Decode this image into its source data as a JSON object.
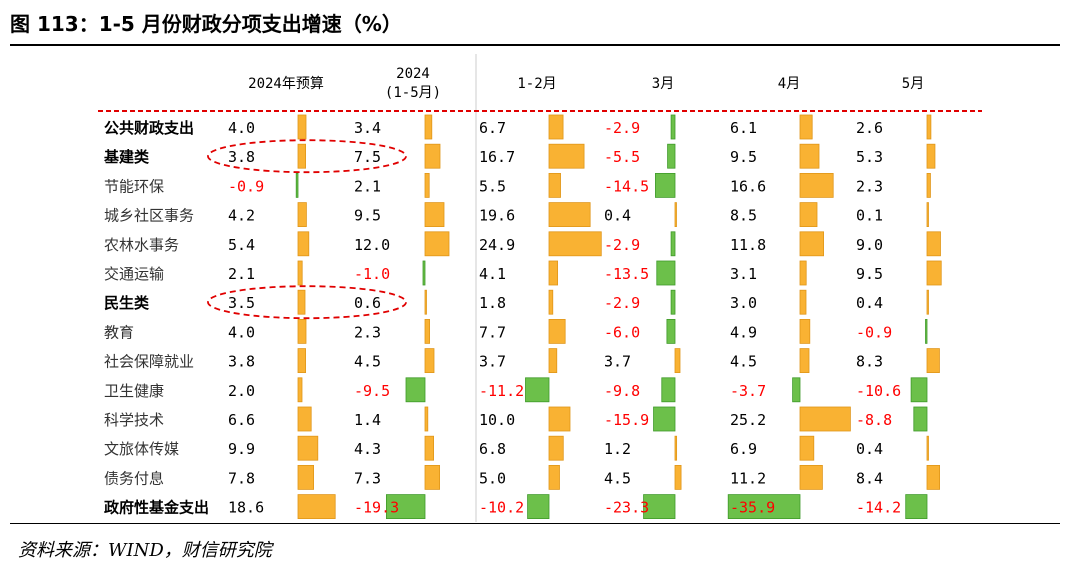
{
  "figure": {
    "title": "图 113：1-5 月份财政分项支出增速（%）",
    "source": "资料来源：WIND，财信研究院"
  },
  "colors": {
    "positive_bar": "#f9b233",
    "negative_bar": "#6cc04a",
    "negative_text": "#ff0000",
    "dashed_line": "#e00000",
    "oval": "#e00000"
  },
  "chart_data": {
    "type": "table",
    "columns": [
      "2024年预算",
      "2024\n(1-5月)",
      "1-2月",
      "3月",
      "4月",
      "5月"
    ],
    "rows": [
      {
        "name": "公共财政支出",
        "bold": true,
        "values": [
          4.0,
          3.4,
          6.7,
          -2.9,
          6.1,
          2.6
        ]
      },
      {
        "name": "基建类",
        "bold": true,
        "values": [
          3.8,
          7.5,
          16.7,
          -5.5,
          9.5,
          5.3
        ]
      },
      {
        "name": "节能环保",
        "bold": false,
        "values": [
          -0.9,
          2.1,
          5.5,
          -14.5,
          16.6,
          2.3
        ]
      },
      {
        "name": "城乡社区事务",
        "bold": false,
        "values": [
          4.2,
          9.5,
          19.6,
          0.4,
          8.5,
          0.1
        ]
      },
      {
        "name": "农林水事务",
        "bold": false,
        "values": [
          5.4,
          12.0,
          24.9,
          -2.9,
          11.8,
          9.0
        ]
      },
      {
        "name": "交通运输",
        "bold": false,
        "values": [
          2.1,
          -1.0,
          4.1,
          -13.5,
          3.1,
          9.5
        ]
      },
      {
        "name": "民生类",
        "bold": true,
        "values": [
          3.5,
          0.6,
          1.8,
          -2.9,
          3.0,
          0.4
        ]
      },
      {
        "name": "教育",
        "bold": false,
        "values": [
          4.0,
          2.3,
          7.7,
          -6.0,
          4.9,
          -0.9
        ]
      },
      {
        "name": "社会保障就业",
        "bold": false,
        "values": [
          3.8,
          4.5,
          3.7,
          3.7,
          4.5,
          8.3
        ]
      },
      {
        "name": "卫生健康",
        "bold": false,
        "values": [
          2.0,
          -9.5,
          -11.2,
          -9.8,
          -3.7,
          -10.6
        ]
      },
      {
        "name": "科学技术",
        "bold": false,
        "values": [
          6.6,
          1.4,
          10.0,
          -15.9,
          25.2,
          -8.8
        ]
      },
      {
        "name": "文旅体传媒",
        "bold": false,
        "values": [
          9.9,
          4.3,
          6.8,
          1.2,
          6.9,
          0.4
        ]
      },
      {
        "name": "债务付息",
        "bold": false,
        "values": [
          7.8,
          7.3,
          5.0,
          4.5,
          11.2,
          8.4
        ]
      },
      {
        "name": "政府性基金支出",
        "bold": true,
        "values": [
          18.6,
          -19.3,
          -10.2,
          -23.3,
          -35.9,
          -14.2
        ]
      }
    ],
    "highlighted_rows": [
      "基建类",
      "民生类"
    ],
    "highlighted_columns": [
      0,
      1
    ]
  }
}
